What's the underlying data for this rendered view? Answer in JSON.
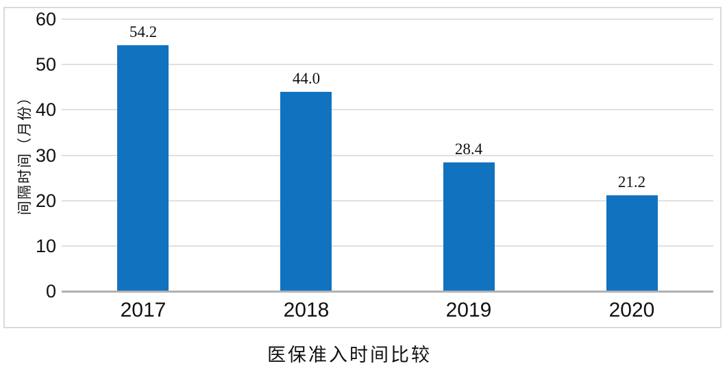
{
  "chart_data": {
    "type": "bar",
    "title": "医保准入时间比较",
    "xlabel": "",
    "ylabel": "间隔时间（月份）",
    "categories": [
      "2017",
      "2018",
      "2019",
      "2020"
    ],
    "values": [
      54.2,
      44.0,
      28.4,
      21.2
    ],
    "value_labels": [
      "54.2",
      "44.0",
      "28.4",
      "21.2"
    ],
    "yticks": [
      0,
      10,
      20,
      30,
      40,
      50,
      60
    ],
    "ylim": [
      0,
      60
    ],
    "grid": true,
    "legend_position": "none"
  },
  "colors": {
    "bar": "#1172c0",
    "gridline": "#e0e0e0",
    "axis_line": "#b0b0b0",
    "frame_border": "#d9d9d9",
    "text": "#111111",
    "background": "#ffffff"
  }
}
